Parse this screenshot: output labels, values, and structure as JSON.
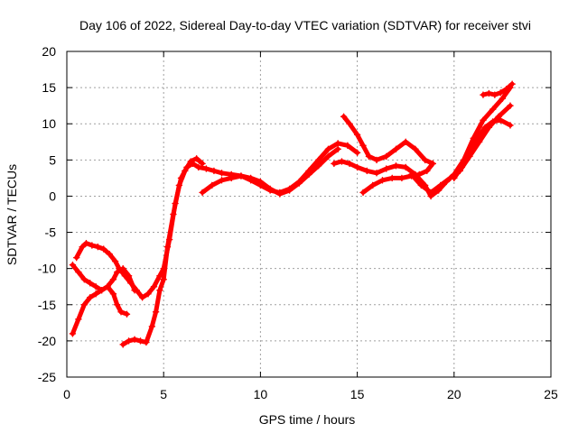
{
  "chart_data": {
    "type": "scatter",
    "title": "Day 106 of 2022, Sidereal Day-to-day VTEC variation (SDTVAR) for receiver stvi",
    "xlabel": "GPS time / hours",
    "ylabel": "SDTVAR / TECUs",
    "xlim": [
      0,
      25
    ],
    "ylim": [
      -25,
      20
    ],
    "xticks": [
      0,
      5,
      10,
      15,
      20,
      25
    ],
    "yticks": [
      -25,
      -20,
      -15,
      -10,
      -5,
      0,
      5,
      10,
      15,
      20
    ],
    "grid": true,
    "color": "#ff0000",
    "series": [
      {
        "x": [
          0.5,
          0.8,
          1.0,
          1.3,
          1.6,
          1.9,
          2.2,
          2.5,
          2.7,
          3.0,
          3.3,
          3.6,
          3.9,
          4.2,
          4.5,
          4.8,
          5.0,
          5.3,
          5.6,
          5.9,
          6.2,
          6.5,
          6.8,
          7.2,
          7.6,
          8.0,
          8.5,
          9.0,
          9.5,
          10.0,
          10.5,
          11.0,
          11.5,
          12.0,
          12.5,
          13.0,
          13.5,
          14.0,
          14.5,
          15.0
        ],
        "y": [
          -8.5,
          -7.0,
          -6.5,
          -6.8,
          -7.0,
          -7.3,
          -8.0,
          -9.0,
          -10.0,
          -11.0,
          -12.0,
          -13.0,
          -14.0,
          -13.5,
          -12.5,
          -11.0,
          -10.0,
          -6.0,
          -1.0,
          2.5,
          4.0,
          4.5,
          4.0,
          3.8,
          3.5,
          3.2,
          3.0,
          2.8,
          2.2,
          1.5,
          0.8,
          0.5,
          1.0,
          2.0,
          3.5,
          5.0,
          6.5,
          7.3,
          7.0,
          6.0
        ]
      },
      {
        "x": [
          0.3,
          0.6,
          0.9,
          1.2,
          1.5,
          1.8,
          2.1,
          2.4,
          2.6,
          2.8,
          3.1
        ],
        "y": [
          -19.0,
          -17.0,
          -15.0,
          -14.0,
          -13.5,
          -13.0,
          -12.5,
          -13.5,
          -15.0,
          -16.0,
          -16.3
        ]
      },
      {
        "x": [
          0.3,
          0.6,
          0.9,
          1.2,
          1.5,
          1.8,
          2.1,
          2.4,
          2.6,
          2.9,
          3.2,
          3.5
        ],
        "y": [
          -9.5,
          -10.5,
          -11.5,
          -12.0,
          -12.5,
          -13.0,
          -12.5,
          -11.5,
          -10.5,
          -10.0,
          -11.0,
          -13.0
        ]
      },
      {
        "x": [
          2.9,
          3.2,
          3.5,
          3.8,
          4.1,
          4.4,
          4.6,
          4.8,
          5.0,
          5.2,
          5.5,
          5.8,
          6.1,
          6.4,
          6.7,
          7.0
        ],
        "y": [
          -20.5,
          -20.0,
          -19.8,
          -20.0,
          -20.2,
          -18.0,
          -16.0,
          -13.0,
          -11.5,
          -7.0,
          -2.5,
          1.5,
          3.5,
          4.8,
          5.2,
          4.5
        ]
      },
      {
        "x": [
          7.0,
          7.5,
          8.0,
          8.5,
          9.0,
          9.5,
          10.0,
          10.5,
          11.0,
          11.5,
          12.0,
          12.5,
          13.0,
          13.5,
          14.0
        ],
        "y": [
          0.5,
          1.5,
          2.2,
          2.5,
          2.8,
          2.5,
          2.0,
          1.0,
          0.3,
          0.8,
          1.8,
          3.0,
          4.2,
          5.5,
          6.5
        ]
      },
      {
        "x": [
          14.3,
          14.6,
          15.0,
          15.3,
          15.6,
          16.0,
          16.5,
          17.0,
          17.5,
          18.0,
          18.5,
          18.9
        ],
        "y": [
          11.0,
          10.0,
          8.5,
          7.0,
          5.5,
          5.0,
          5.5,
          6.5,
          7.5,
          6.5,
          5.0,
          4.5
        ]
      },
      {
        "x": [
          15.3,
          15.8,
          16.3,
          16.8,
          17.3,
          17.8,
          18.2,
          18.6,
          18.9
        ],
        "y": [
          0.5,
          1.5,
          2.2,
          2.5,
          2.5,
          2.8,
          3.0,
          3.5,
          4.5
        ]
      },
      {
        "x": [
          13.8,
          14.2,
          14.6,
          15.0,
          15.5,
          16.0,
          16.5,
          17.0,
          17.5,
          18.0,
          18.5,
          18.8,
          19.2,
          19.6,
          20.0,
          20.5,
          21.0,
          21.5,
          22.0,
          22.5,
          22.9
        ],
        "y": [
          4.5,
          4.8,
          4.5,
          4.0,
          3.5,
          3.2,
          3.8,
          4.2,
          4.0,
          3.0,
          1.5,
          0.0,
          0.8,
          2.0,
          3.0,
          5.0,
          8.0,
          10.5,
          12.0,
          13.5,
          15.0
        ]
      },
      {
        "x": [
          17.8,
          18.3,
          18.8,
          19.3,
          19.8,
          20.3,
          20.8,
          21.3,
          21.8,
          22.3,
          22.9
        ],
        "y": [
          3.0,
          1.5,
          0.5,
          1.5,
          2.5,
          3.5,
          5.5,
          7.5,
          9.5,
          11.0,
          12.5
        ]
      },
      {
        "x": [
          20.0,
          20.4,
          20.8,
          21.2,
          21.6,
          22.0,
          22.4,
          22.9
        ],
        "y": [
          2.5,
          4.0,
          6.0,
          8.0,
          9.5,
          10.3,
          10.5,
          9.8
        ]
      },
      {
        "x": [
          21.5,
          21.8,
          22.1,
          22.4,
          22.7,
          23.0
        ],
        "y": [
          14.0,
          14.2,
          14.0,
          14.3,
          14.8,
          15.5
        ]
      }
    ]
  }
}
